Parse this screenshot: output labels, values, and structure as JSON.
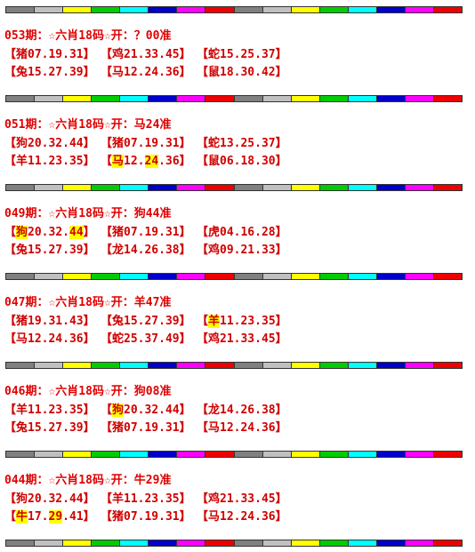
{
  "blocks": [
    {
      "title": "053期：☆六肖18码☆开：？00准",
      "rows": [
        [
          [
            "【猪07.19.31】"
          ],
          [
            "【鸡21.33.45】"
          ],
          [
            "【蛇15.25.37】"
          ]
        ],
        [
          [
            "【兔15.27.39】"
          ],
          [
            "【马12.24.36】"
          ],
          [
            "【鼠18.30.42】"
          ]
        ]
      ]
    },
    {
      "title": "051期：☆六肖18码☆开：马24准",
      "rows": [
        [
          [
            "【狗20.32.44】"
          ],
          [
            "【猪07.19.31】"
          ],
          [
            "【蛇13.25.37】"
          ]
        ],
        [
          [
            "【羊11.23.35】"
          ],
          [
            "【",
            {
              "text": "马",
              "highlight": true
            },
            "12.",
            {
              "text": "24",
              "highlight": true
            },
            ".36】"
          ],
          [
            "【鼠06.18.30】"
          ]
        ]
      ]
    },
    {
      "title": "049期：☆六肖18码☆开：狗44准",
      "rows": [
        [
          [
            "【",
            {
              "text": "狗",
              "highlight": true
            },
            "20.32.",
            {
              "text": "44",
              "highlight": true
            },
            "】"
          ],
          [
            "【猪07.19.31】"
          ],
          [
            "【虎04.16.28】"
          ]
        ],
        [
          [
            "【兔15.27.39】"
          ],
          [
            "【龙14.26.38】"
          ],
          [
            "【鸡09.21.33】"
          ]
        ]
      ]
    },
    {
      "title": "047期：☆六肖18码☆开：羊47准",
      "rows": [
        [
          [
            "【猪19.31.43】"
          ],
          [
            "【兔15.27.39】"
          ],
          [
            "【",
            {
              "text": "羊",
              "highlight": true
            },
            "11.23.35】"
          ]
        ],
        [
          [
            "【马12.24.36】"
          ],
          [
            "【蛇25.37.49】"
          ],
          [
            "【鸡21.33.45】"
          ]
        ]
      ]
    },
    {
      "title": "046期：☆六肖18码☆开：狗08准",
      "rows": [
        [
          [
            "【羊11.23.35】"
          ],
          [
            "【",
            {
              "text": "狗",
              "highlight": true
            },
            "20.32.44】"
          ],
          [
            "【龙14.26.38】"
          ]
        ],
        [
          [
            "【兔15.27.39】"
          ],
          [
            "【猪07.19.31】"
          ],
          [
            "【马12.24.36】"
          ]
        ]
      ]
    },
    {
      "title": "044期：☆六肖18码☆开：牛29准",
      "rows": [
        [
          [
            "【狗20.32.44】"
          ],
          [
            "【羊11.23.35】"
          ],
          [
            "【鸡21.33.45】"
          ]
        ],
        [
          [
            "【",
            {
              "text": "牛",
              "highlight": true
            },
            "17.",
            {
              "text": "29",
              "highlight": true
            },
            ".41】"
          ],
          [
            "【猪07.19.31】"
          ],
          [
            "【马12.24.36】"
          ]
        ]
      ]
    }
  ]
}
